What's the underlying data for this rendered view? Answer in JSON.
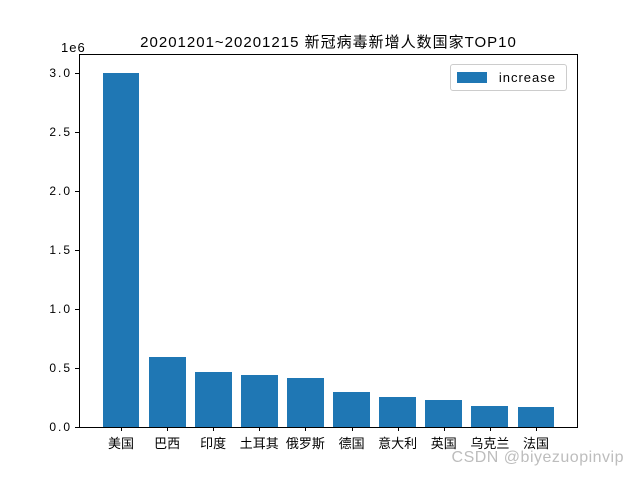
{
  "window": {
    "background": "#ffffff"
  },
  "chart_data": {
    "type": "bar",
    "title": "20201201~20201215 新冠病毒新增人数国家TOP10",
    "categories": [
      "美国",
      "巴西",
      "印度",
      "土耳其",
      "俄罗斯",
      "德国",
      "意大利",
      "英国",
      "乌克兰",
      "法国"
    ],
    "series": [
      {
        "name": "increase",
        "values": [
          3000000,
          595000,
          470000,
          440000,
          415000,
          297000,
          256000,
          232000,
          181000,
          172000
        ]
      }
    ],
    "xlabel": "",
    "ylabel": "",
    "ylim": [
      0,
      3150000
    ],
    "yticks": {
      "values": [
        0,
        500000,
        1000000,
        1500000,
        2000000,
        2500000,
        3000000
      ],
      "labels": [
        "0.0",
        "0.5",
        "1.0",
        "1.5",
        "2.0",
        "2.5",
        "3.0"
      ]
    },
    "y_axis_offset_text": "1e6",
    "grid": false,
    "bar_color": "#1f77b4",
    "legend": {
      "position": "upper-right",
      "entries": [
        {
          "label": "increase",
          "color": "#1f77b4"
        }
      ]
    }
  },
  "watermark": {
    "text": "CSDN @biyezuopinvip",
    "color": "#bdbdbd"
  }
}
